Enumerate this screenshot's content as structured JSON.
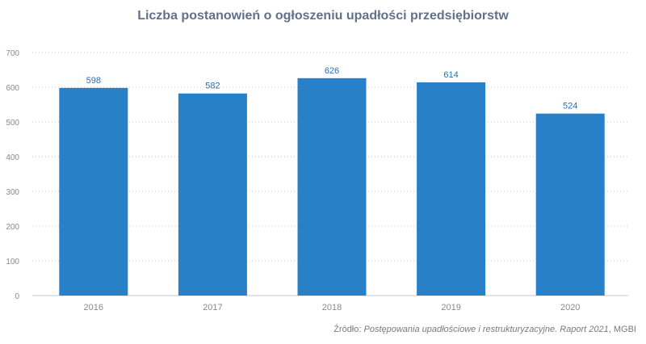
{
  "chart_data": {
    "type": "bar",
    "title": "Liczba postanowień o ogłoszeniu upadłości przedsiębiorstw",
    "categories": [
      "2016",
      "2017",
      "2018",
      "2019",
      "2020"
    ],
    "values": [
      598,
      582,
      626,
      614,
      524
    ],
    "data_labels": [
      "598",
      "582",
      "626",
      "614",
      "524"
    ],
    "ylim": [
      0,
      700
    ],
    "yticks": [
      "0",
      "100",
      "200",
      "300",
      "400",
      "500",
      "600",
      "700"
    ],
    "grid": true,
    "legend": "none",
    "xlabel": "",
    "ylabel": "",
    "bar_color": "#2880c8"
  },
  "source": {
    "prefix": "Źródło: ",
    "text": "Postępowania upadłościowe i restrukturyzacyjne. Raport 2021",
    "suffix": ", MGBI"
  }
}
